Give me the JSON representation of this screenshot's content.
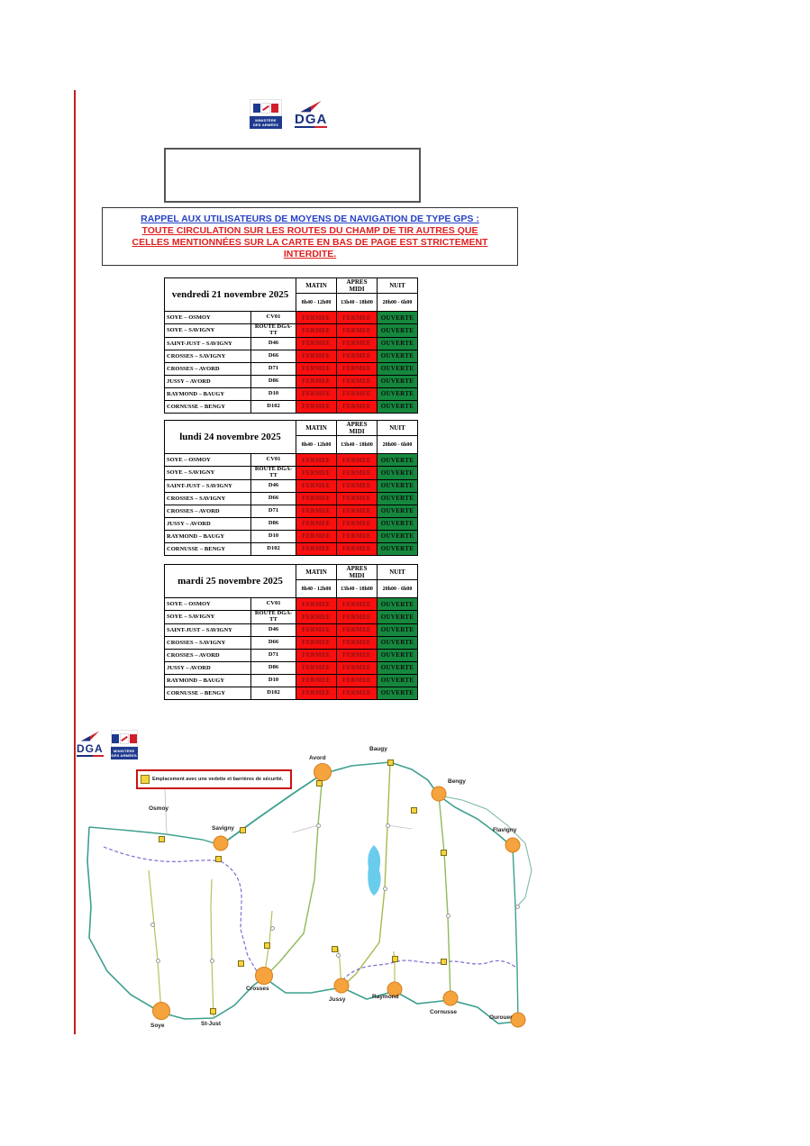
{
  "header": {
    "ministry_logo": {
      "line1": "MINISTÈRE",
      "line2": "DES ARMÉES"
    },
    "dga_label": "DGA"
  },
  "notice_box": {
    "text": ""
  },
  "warning": {
    "line1": "RAPPEL AUX UTILISATEURS DE MOYENS DE NAVIGATION DE TYPE GPS :",
    "line2": "TOUTE CIRCULATION SUR LES ROUTES DU CHAMP DE TIR AUTRES QUE",
    "line3": "CELLES MENTIONNÉES SUR LA CARTE EN BAS DE PAGE EST STRICTEMENT",
    "line4": "INTERDITE."
  },
  "schedule": {
    "columns": [
      "MATIN",
      "APRES MIDI",
      "NUIT"
    ],
    "times": [
      "8h40 - 12h00",
      "13h40 - 18h00",
      "20h00 - 6h00"
    ],
    "status_colors": {
      "closed_bg": "#fa0f0f",
      "open_bg": "#15883e"
    },
    "tables": [
      {
        "date": "vendredi 21 novembre 2025",
        "rows": [
          {
            "name": "SOYE – OSMOY",
            "road": "CV01",
            "matin": "FERMEE",
            "apres_midi": "FERMEE",
            "nuit": "OUVERTE"
          },
          {
            "name": "SOYE – SAVIGNY",
            "road": "ROUTE DGA-TT",
            "matin": "FERMEE",
            "apres_midi": "FERMEE",
            "nuit": "OUVERTE"
          },
          {
            "name": "SAINT-JUST – SAVIGNY",
            "road": "D46",
            "matin": "FERMEE",
            "apres_midi": "FERMEE",
            "nuit": "OUVERTE"
          },
          {
            "name": "CROSSES – SAVIGNY",
            "road": "D66",
            "matin": "FERMEE",
            "apres_midi": "FERMEE",
            "nuit": "OUVERTE"
          },
          {
            "name": "CROSSES – AVORD",
            "road": "D71",
            "matin": "FERMEE",
            "apres_midi": "FERMEE",
            "nuit": "OUVERTE"
          },
          {
            "name": "JUSSY – AVORD",
            "road": "D86",
            "matin": "FERMEE",
            "apres_midi": "FERMEE",
            "nuit": "OUVERTE"
          },
          {
            "name": "RAYMOND – BAUGY",
            "road": "D10",
            "matin": "FERMEE",
            "apres_midi": "FERMEE",
            "nuit": "OUVERTE"
          },
          {
            "name": "CORNUSSE – BENGY",
            "road": "D102",
            "matin": "FERMEE",
            "apres_midi": "FERMEE",
            "nuit": "OUVERTE"
          }
        ]
      },
      {
        "date": "lundi 24 novembre 2025",
        "rows": [
          {
            "name": "SOYE – OSMOY",
            "road": "CV01",
            "matin": "FERMEE",
            "apres_midi": "FERMEE",
            "nuit": "OUVERTE"
          },
          {
            "name": "SOYE – SAVIGNY",
            "road": "ROUTE DGA-TT",
            "matin": "FERMEE",
            "apres_midi": "FERMEE",
            "nuit": "OUVERTE"
          },
          {
            "name": "SAINT-JUST – SAVIGNY",
            "road": "D46",
            "matin": "FERMEE",
            "apres_midi": "FERMEE",
            "nuit": "OUVERTE"
          },
          {
            "name": "CROSSES – SAVIGNY",
            "road": "D66",
            "matin": "FERMEE",
            "apres_midi": "FERMEE",
            "nuit": "OUVERTE"
          },
          {
            "name": "CROSSES – AVORD",
            "road": "D71",
            "matin": "FERMEE",
            "apres_midi": "FERMEE",
            "nuit": "OUVERTE"
          },
          {
            "name": "JUSSY – AVORD",
            "road": "D86",
            "matin": "FERMEE",
            "apres_midi": "FERMEE",
            "nuit": "OUVERTE"
          },
          {
            "name": "RAYMOND – BAUGY",
            "road": "D10",
            "matin": "FERMEE",
            "apres_midi": "FERMEE",
            "nuit": "OUVERTE"
          },
          {
            "name": "CORNUSSE – BENGY",
            "road": "D102",
            "matin": "FERMEE",
            "apres_midi": "FERMEE",
            "nuit": "OUVERTE"
          }
        ]
      },
      {
        "date": "mardi 25 novembre 2025",
        "rows": [
          {
            "name": "SOYE – OSMOY",
            "road": "CV01",
            "matin": "FERMEE",
            "apres_midi": "FERMEE",
            "nuit": "OUVERTE"
          },
          {
            "name": "SOYE – SAVIGNY",
            "road": "ROUTE DGA-TT",
            "matin": "FERMEE",
            "apres_midi": "FERMEE",
            "nuit": "OUVERTE"
          },
          {
            "name": "SAINT-JUST – SAVIGNY",
            "road": "D46",
            "matin": "FERMEE",
            "apres_midi": "FERMEE",
            "nuit": "OUVERTE"
          },
          {
            "name": "CROSSES – SAVIGNY",
            "road": "D66",
            "matin": "FERMEE",
            "apres_midi": "FERMEE",
            "nuit": "OUVERTE"
          },
          {
            "name": "CROSSES – AVORD",
            "road": "D71",
            "matin": "FERMEE",
            "apres_midi": "FERMEE",
            "nuit": "OUVERTE"
          },
          {
            "name": "JUSSY – AVORD",
            "road": "D86",
            "matin": "FERMEE",
            "apres_midi": "FERMEE",
            "nuit": "OUVERTE"
          },
          {
            "name": "RAYMOND – BAUGY",
            "road": "D10",
            "matin": "FERMEE",
            "apres_midi": "FERMEE",
            "nuit": "OUVERTE"
          },
          {
            "name": "CORNUSSE – BENGY",
            "road": "D102",
            "matin": "FERMEE",
            "apres_midi": "FERMEE",
            "nuit": "OUVERTE"
          }
        ]
      }
    ]
  },
  "map": {
    "dga_label": "DGA",
    "legend_text": "Emplacement avec une vedette et barrières de sécurité.",
    "towns": [
      {
        "name": "Avord"
      },
      {
        "name": "Baugy"
      },
      {
        "name": "Bengy"
      },
      {
        "name": "Flavigny"
      },
      {
        "name": "Osmoy"
      },
      {
        "name": "Savigny"
      },
      {
        "name": "Crosses"
      },
      {
        "name": "Jussy"
      },
      {
        "name": "Raymond"
      },
      {
        "name": "Cornusse"
      },
      {
        "name": "Ourouer"
      },
      {
        "name": "Soye"
      },
      {
        "name": "St-Just"
      }
    ]
  }
}
